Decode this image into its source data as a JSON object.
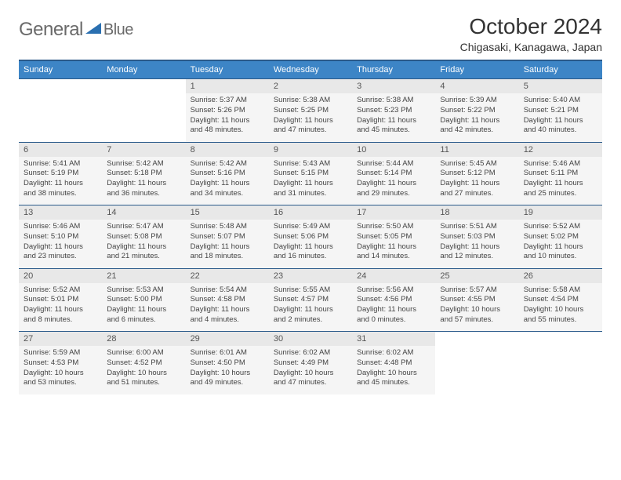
{
  "logo": {
    "part1": "General",
    "part2": "Blue"
  },
  "title": "October 2024",
  "location": "Chigasaki, Kanagawa, Japan",
  "colors": {
    "header_bg": "#3d85c6",
    "header_border": "#2a5a8a",
    "daynum_bg": "#e8e8e8",
    "detail_bg": "#f5f5f5",
    "logo_gray": "#6a6a6a",
    "logo_blue": "#2a6fb0"
  },
  "day_headers": [
    "Sunday",
    "Monday",
    "Tuesday",
    "Wednesday",
    "Thursday",
    "Friday",
    "Saturday"
  ],
  "weeks": [
    {
      "nums": [
        "",
        "",
        "1",
        "2",
        "3",
        "4",
        "5"
      ],
      "cells": [
        null,
        null,
        {
          "sunrise": "Sunrise: 5:37 AM",
          "sunset": "Sunset: 5:26 PM",
          "dl1": "Daylight: 11 hours",
          "dl2": "and 48 minutes."
        },
        {
          "sunrise": "Sunrise: 5:38 AM",
          "sunset": "Sunset: 5:25 PM",
          "dl1": "Daylight: 11 hours",
          "dl2": "and 47 minutes."
        },
        {
          "sunrise": "Sunrise: 5:38 AM",
          "sunset": "Sunset: 5:23 PM",
          "dl1": "Daylight: 11 hours",
          "dl2": "and 45 minutes."
        },
        {
          "sunrise": "Sunrise: 5:39 AM",
          "sunset": "Sunset: 5:22 PM",
          "dl1": "Daylight: 11 hours",
          "dl2": "and 42 minutes."
        },
        {
          "sunrise": "Sunrise: 5:40 AM",
          "sunset": "Sunset: 5:21 PM",
          "dl1": "Daylight: 11 hours",
          "dl2": "and 40 minutes."
        }
      ]
    },
    {
      "nums": [
        "6",
        "7",
        "8",
        "9",
        "10",
        "11",
        "12"
      ],
      "cells": [
        {
          "sunrise": "Sunrise: 5:41 AM",
          "sunset": "Sunset: 5:19 PM",
          "dl1": "Daylight: 11 hours",
          "dl2": "and 38 minutes."
        },
        {
          "sunrise": "Sunrise: 5:42 AM",
          "sunset": "Sunset: 5:18 PM",
          "dl1": "Daylight: 11 hours",
          "dl2": "and 36 minutes."
        },
        {
          "sunrise": "Sunrise: 5:42 AM",
          "sunset": "Sunset: 5:16 PM",
          "dl1": "Daylight: 11 hours",
          "dl2": "and 34 minutes."
        },
        {
          "sunrise": "Sunrise: 5:43 AM",
          "sunset": "Sunset: 5:15 PM",
          "dl1": "Daylight: 11 hours",
          "dl2": "and 31 minutes."
        },
        {
          "sunrise": "Sunrise: 5:44 AM",
          "sunset": "Sunset: 5:14 PM",
          "dl1": "Daylight: 11 hours",
          "dl2": "and 29 minutes."
        },
        {
          "sunrise": "Sunrise: 5:45 AM",
          "sunset": "Sunset: 5:12 PM",
          "dl1": "Daylight: 11 hours",
          "dl2": "and 27 minutes."
        },
        {
          "sunrise": "Sunrise: 5:46 AM",
          "sunset": "Sunset: 5:11 PM",
          "dl1": "Daylight: 11 hours",
          "dl2": "and 25 minutes."
        }
      ]
    },
    {
      "nums": [
        "13",
        "14",
        "15",
        "16",
        "17",
        "18",
        "19"
      ],
      "cells": [
        {
          "sunrise": "Sunrise: 5:46 AM",
          "sunset": "Sunset: 5:10 PM",
          "dl1": "Daylight: 11 hours",
          "dl2": "and 23 minutes."
        },
        {
          "sunrise": "Sunrise: 5:47 AM",
          "sunset": "Sunset: 5:08 PM",
          "dl1": "Daylight: 11 hours",
          "dl2": "and 21 minutes."
        },
        {
          "sunrise": "Sunrise: 5:48 AM",
          "sunset": "Sunset: 5:07 PM",
          "dl1": "Daylight: 11 hours",
          "dl2": "and 18 minutes."
        },
        {
          "sunrise": "Sunrise: 5:49 AM",
          "sunset": "Sunset: 5:06 PM",
          "dl1": "Daylight: 11 hours",
          "dl2": "and 16 minutes."
        },
        {
          "sunrise": "Sunrise: 5:50 AM",
          "sunset": "Sunset: 5:05 PM",
          "dl1": "Daylight: 11 hours",
          "dl2": "and 14 minutes."
        },
        {
          "sunrise": "Sunrise: 5:51 AM",
          "sunset": "Sunset: 5:03 PM",
          "dl1": "Daylight: 11 hours",
          "dl2": "and 12 minutes."
        },
        {
          "sunrise": "Sunrise: 5:52 AM",
          "sunset": "Sunset: 5:02 PM",
          "dl1": "Daylight: 11 hours",
          "dl2": "and 10 minutes."
        }
      ]
    },
    {
      "nums": [
        "20",
        "21",
        "22",
        "23",
        "24",
        "25",
        "26"
      ],
      "cells": [
        {
          "sunrise": "Sunrise: 5:52 AM",
          "sunset": "Sunset: 5:01 PM",
          "dl1": "Daylight: 11 hours",
          "dl2": "and 8 minutes."
        },
        {
          "sunrise": "Sunrise: 5:53 AM",
          "sunset": "Sunset: 5:00 PM",
          "dl1": "Daylight: 11 hours",
          "dl2": "and 6 minutes."
        },
        {
          "sunrise": "Sunrise: 5:54 AM",
          "sunset": "Sunset: 4:58 PM",
          "dl1": "Daylight: 11 hours",
          "dl2": "and 4 minutes."
        },
        {
          "sunrise": "Sunrise: 5:55 AM",
          "sunset": "Sunset: 4:57 PM",
          "dl1": "Daylight: 11 hours",
          "dl2": "and 2 minutes."
        },
        {
          "sunrise": "Sunrise: 5:56 AM",
          "sunset": "Sunset: 4:56 PM",
          "dl1": "Daylight: 11 hours",
          "dl2": "and 0 minutes."
        },
        {
          "sunrise": "Sunrise: 5:57 AM",
          "sunset": "Sunset: 4:55 PM",
          "dl1": "Daylight: 10 hours",
          "dl2": "and 57 minutes."
        },
        {
          "sunrise": "Sunrise: 5:58 AM",
          "sunset": "Sunset: 4:54 PM",
          "dl1": "Daylight: 10 hours",
          "dl2": "and 55 minutes."
        }
      ]
    },
    {
      "nums": [
        "27",
        "28",
        "29",
        "30",
        "31",
        "",
        ""
      ],
      "cells": [
        {
          "sunrise": "Sunrise: 5:59 AM",
          "sunset": "Sunset: 4:53 PM",
          "dl1": "Daylight: 10 hours",
          "dl2": "and 53 minutes."
        },
        {
          "sunrise": "Sunrise: 6:00 AM",
          "sunset": "Sunset: 4:52 PM",
          "dl1": "Daylight: 10 hours",
          "dl2": "and 51 minutes."
        },
        {
          "sunrise": "Sunrise: 6:01 AM",
          "sunset": "Sunset: 4:50 PM",
          "dl1": "Daylight: 10 hours",
          "dl2": "and 49 minutes."
        },
        {
          "sunrise": "Sunrise: 6:02 AM",
          "sunset": "Sunset: 4:49 PM",
          "dl1": "Daylight: 10 hours",
          "dl2": "and 47 minutes."
        },
        {
          "sunrise": "Sunrise: 6:02 AM",
          "sunset": "Sunset: 4:48 PM",
          "dl1": "Daylight: 10 hours",
          "dl2": "and 45 minutes."
        },
        null,
        null
      ]
    }
  ]
}
